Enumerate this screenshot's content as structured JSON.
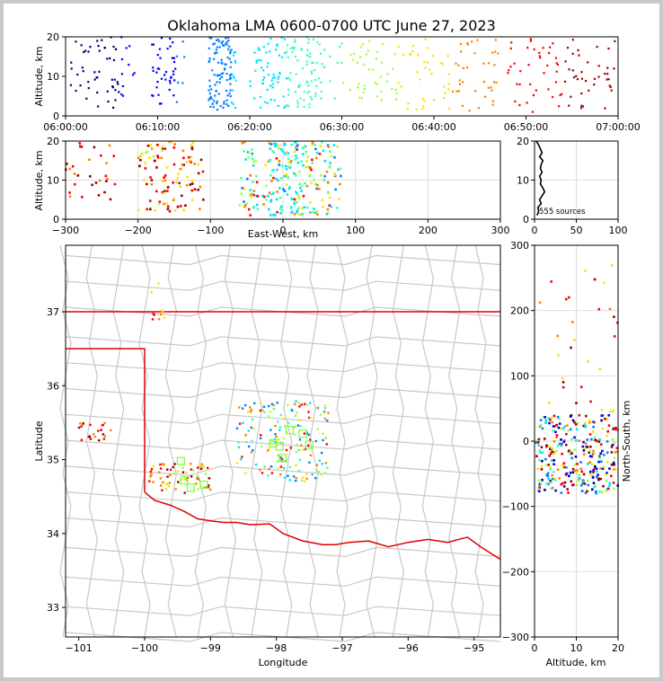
{
  "title": "Oklahoma LMA 0600-0700 UTC June 27, 2023",
  "colors": {
    "frame": "#000000",
    "grid": "#dddddd",
    "county": "#c8c8c8",
    "border": "#e00000",
    "highlight": "#80ff40",
    "histogram": "#000000",
    "time_ramp": [
      "#000080",
      "#0000ff",
      "#0080ff",
      "#00e0ff",
      "#40ffb0",
      "#a0ff40",
      "#ffe000",
      "#ff8000",
      "#ff0000",
      "#a00000"
    ]
  },
  "chart_data": [
    {
      "id": "time_height",
      "type": "scatter",
      "title": "Oklahoma LMA 0600-0700 UTC June 27, 2023",
      "xlabel": "",
      "ylabel": "Altitude, km",
      "xlim": [
        "06:00:00",
        "07:00:00"
      ],
      "ylim": [
        0,
        20
      ],
      "xticks": [
        "06:00:00",
        "06:10:00",
        "06:20:00",
        "06:30:00",
        "06:40:00",
        "06:50:00",
        "07:00:00"
      ],
      "yticks": [
        0,
        10,
        20
      ],
      "clusters": [
        {
          "t_start_min": 0.5,
          "t_end_min": 7.5,
          "alt_range": [
            2,
            20
          ],
          "count": 60
        },
        {
          "t_start_min": 9,
          "t_end_min": 13,
          "alt_range": [
            3,
            20
          ],
          "count": 45
        },
        {
          "t_start_min": 15.5,
          "t_end_min": 18.5,
          "alt_range": [
            1.5,
            20
          ],
          "count": 110
        },
        {
          "t_start_min": 20,
          "t_end_min": 27,
          "alt_range": [
            2,
            20
          ],
          "count": 120
        },
        {
          "t_start_min": 27,
          "t_end_min": 37,
          "alt_range": [
            4,
            20
          ],
          "count": 70
        },
        {
          "t_start_min": 37,
          "t_end_min": 47,
          "alt_range": [
            1,
            20
          ],
          "count": 70
        },
        {
          "t_start_min": 48,
          "t_end_min": 60,
          "alt_range": [
            1,
            20
          ],
          "count": 80
        }
      ]
    },
    {
      "id": "east_west_height",
      "type": "scatter",
      "xlabel": "East-West, km",
      "ylabel": "Altitude, km",
      "xlim": [
        -300,
        300
      ],
      "ylim": [
        0,
        20
      ],
      "xticks": [
        -300,
        -200,
        -100,
        0,
        100,
        200,
        300
      ],
      "yticks": [
        0,
        10,
        20
      ]
    },
    {
      "id": "altitude_histogram",
      "type": "line",
      "xlim": [
        0,
        100
      ],
      "ylim": [
        0,
        20
      ],
      "xticks": [
        0,
        50,
        100
      ],
      "yticks": [
        0,
        10,
        20
      ],
      "annotation": "555 sources",
      "altitude_km": [
        1,
        2,
        3,
        4,
        5,
        6,
        7,
        8,
        9,
        10,
        11,
        12,
        13,
        14,
        15,
        16,
        17,
        18,
        19,
        20
      ],
      "counts": [
        3,
        5,
        4,
        8,
        6,
        9,
        12,
        10,
        7,
        8,
        6,
        9,
        7,
        8,
        10,
        6,
        9,
        7,
        5,
        2
      ]
    },
    {
      "id": "plan_view",
      "type": "scatter",
      "xlabel": "Longitude",
      "ylabel": "Latitude",
      "xlim": [
        -101.2,
        -94.6
      ],
      "ylim": [
        32.6,
        37.9
      ],
      "xticks": [
        -101,
        -100,
        -99,
        -98,
        -97,
        -96,
        -95
      ],
      "yticks": [
        33,
        34,
        35,
        36,
        37
      ],
      "clusters": [
        {
          "lon_range": [
            -101.0,
            -100.5
          ],
          "lat_range": [
            35.25,
            35.5
          ],
          "count": 22
        },
        {
          "lon_range": [
            -100.0,
            -99.0
          ],
          "lat_range": [
            34.55,
            34.95
          ],
          "count": 70
        },
        {
          "lon_range": [
            -98.6,
            -97.2
          ],
          "lat_range": [
            34.7,
            35.8
          ],
          "count": 170
        },
        {
          "lon_range": [
            -99.9,
            -99.7
          ],
          "lat_range": [
            36.8,
            37.4
          ],
          "count": 10
        }
      ],
      "boxes": [
        [
          -99.45,
          34.98
        ],
        [
          -99.4,
          34.72
        ],
        [
          -99.3,
          34.62
        ],
        [
          -99.1,
          34.66
        ],
        [
          -98.05,
          35.22
        ],
        [
          -97.95,
          35.18
        ],
        [
          -97.9,
          35.02
        ],
        [
          -97.5,
          35.2
        ],
        [
          -97.6,
          35.35
        ],
        [
          -97.8,
          35.4
        ]
      ]
    },
    {
      "id": "altitude_north_south",
      "type": "scatter",
      "xlabel": "Altitude, km",
      "ylabel": "North-South, km",
      "xlim": [
        0,
        20
      ],
      "ylim": [
        -300,
        300
      ],
      "xticks": [
        0,
        10,
        20
      ],
      "yticks": [
        -300,
        -200,
        -100,
        0,
        100,
        200,
        300
      ]
    }
  ]
}
